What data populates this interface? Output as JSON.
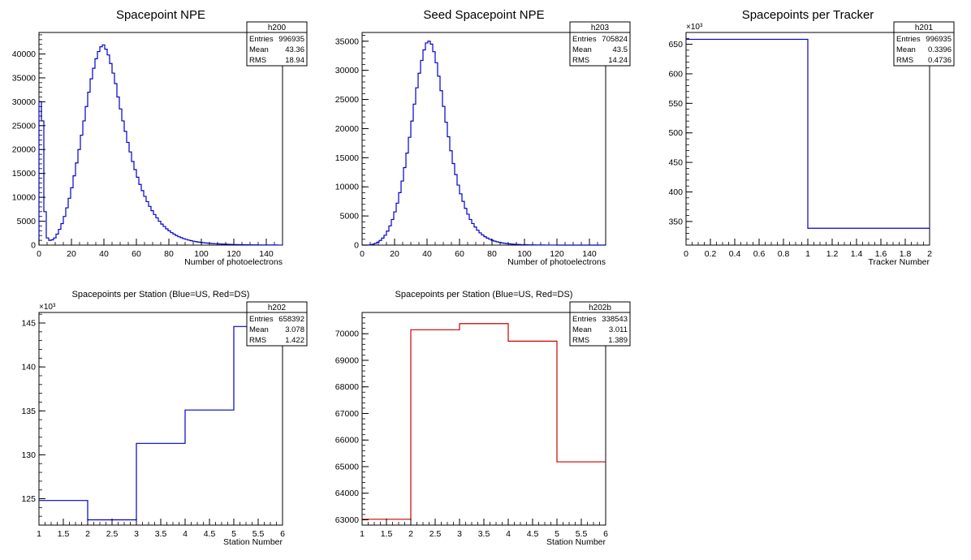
{
  "chart_data": [
    {
      "id": "h200",
      "type": "histogram",
      "title": "Spacepoint NPE",
      "xlabel": "Number of photoelectrons",
      "ylabel": "",
      "xlim": [
        0,
        150
      ],
      "ylim": [
        0,
        44500
      ],
      "xticks": [
        0,
        20,
        40,
        60,
        80,
        100,
        120,
        140
      ],
      "yticks": [
        0,
        5000,
        10000,
        15000,
        20000,
        25000,
        30000,
        35000,
        40000
      ],
      "exponent": "",
      "color": "#0000cc",
      "grid": false,
      "stats": {
        "name": "h200",
        "rows": [
          [
            "Entries",
            "996935"
          ],
          [
            "Mean",
            "43.36"
          ],
          [
            "RMS",
            "18.94"
          ]
        ]
      },
      "bin_width": 1.5,
      "values": [
        30000,
        26000,
        7000,
        1500,
        1000,
        1100,
        1500,
        2300,
        3300,
        4500,
        6000,
        7800,
        9800,
        12000,
        14500,
        17200,
        20000,
        23000,
        26000,
        29000,
        32000,
        34800,
        37000,
        39000,
        40500,
        41500,
        41900,
        41000,
        39800,
        38000,
        36000,
        33800,
        31000,
        28500,
        26000,
        23800,
        21500,
        19500,
        17500,
        15800,
        14200,
        12700,
        11400,
        10200,
        9100,
        8100,
        7200,
        6400,
        5700,
        5000,
        4400,
        3900,
        3400,
        3000,
        2600,
        2300,
        2000,
        1750,
        1550,
        1350,
        1200,
        1050,
        930,
        820,
        720,
        640,
        570,
        510,
        450,
        400,
        360,
        320,
        290,
        260,
        230,
        210,
        190,
        170,
        150,
        130,
        115,
        100,
        90,
        80,
        70,
        60,
        55,
        50,
        45,
        40,
        36,
        32,
        28,
        25,
        22,
        20,
        18,
        16,
        14,
        12
      ]
    },
    {
      "id": "h203",
      "type": "histogram",
      "title": "Seed Spacepoint NPE",
      "xlabel": "Number of photoelectrons",
      "ylabel": "",
      "xlim": [
        0,
        150
      ],
      "ylim": [
        0,
        36500
      ],
      "xticks": [
        0,
        20,
        40,
        60,
        80,
        100,
        120,
        140
      ],
      "yticks": [
        0,
        5000,
        10000,
        15000,
        20000,
        25000,
        30000,
        35000
      ],
      "exponent": "",
      "color": "#0000cc",
      "grid": false,
      "stats": {
        "name": "h203",
        "rows": [
          [
            "Entries",
            "705824"
          ],
          [
            "Mean",
            "43.5"
          ],
          [
            "RMS",
            "14.24"
          ]
        ]
      },
      "bin_width": 1.5,
      "values": [
        0,
        0,
        10,
        50,
        150,
        300,
        500,
        800,
        1200,
        1700,
        2400,
        3300,
        4400,
        5700,
        7200,
        9000,
        11000,
        13300,
        15800,
        18500,
        21300,
        24200,
        27000,
        29500,
        31700,
        33500,
        34700,
        35000,
        34500,
        33200,
        31300,
        29000,
        26500,
        23800,
        21100,
        18600,
        16200,
        14000,
        12100,
        10300,
        8800,
        7500,
        6300,
        5300,
        4400,
        3700,
        3100,
        2550,
        2100,
        1750,
        1450,
        1200,
        1000,
        820,
        680,
        560,
        460,
        380,
        310,
        260,
        210,
        175,
        145,
        120,
        100,
        80,
        65,
        55,
        45,
        37,
        30,
        25,
        20,
        16,
        13,
        11,
        9,
        7,
        6,
        5,
        4,
        3,
        3,
        2,
        2,
        1,
        1,
        1,
        1,
        0,
        0,
        0,
        0,
        0,
        0,
        0,
        0,
        0,
        0,
        0
      ]
    },
    {
      "id": "h201",
      "type": "histogram",
      "title": "Spacepoints per Tracker",
      "xlabel": "Tracker Number",
      "ylabel": "",
      "xlim": [
        0,
        2
      ],
      "ylim": [
        310,
        670
      ],
      "xticks": [
        0,
        0.2,
        0.4,
        0.6,
        0.8,
        1,
        1.2,
        1.4,
        1.6,
        1.8,
        2
      ],
      "xtick_labels": [
        "0",
        "0.2",
        "0.4",
        "0.6",
        "0.8",
        "1",
        "1.2",
        "1.4",
        "1.6",
        "1.8",
        "2"
      ],
      "yticks": [
        350,
        400,
        450,
        500,
        550,
        600,
        650
      ],
      "exponent": "×10³",
      "color": "#0000cc",
      "grid": false,
      "stats": {
        "name": "h201",
        "rows": [
          [
            "Entries",
            "996935"
          ],
          [
            "Mean",
            "0.3396"
          ],
          [
            "RMS",
            "0.4736"
          ]
        ]
      },
      "edges": [
        0,
        1,
        2
      ],
      "values": [
        658.392,
        338.543
      ]
    },
    {
      "id": "h202",
      "type": "histogram",
      "title": "Spacepoints per Station (Blue=US, Red=DS)",
      "xlabel": "Station Number",
      "ylabel": "",
      "xlim": [
        1,
        6
      ],
      "ylim": [
        122,
        146.2
      ],
      "xticks": [
        1,
        1.5,
        2,
        2.5,
        3,
        3.5,
        4,
        4.5,
        5,
        5.5,
        6
      ],
      "xtick_labels": [
        "1",
        "1.5",
        "2",
        "2.5",
        "3",
        "3.5",
        "4",
        "4.5",
        "5",
        "5.5",
        "6"
      ],
      "yticks": [
        125,
        130,
        135,
        140,
        145
      ],
      "exponent": "×10³",
      "color": "#0000cc",
      "grid": false,
      "stats": {
        "name": "h202",
        "rows": [
          [
            "Entries",
            "658392"
          ],
          [
            "Mean",
            "3.078"
          ],
          [
            "RMS",
            "1.422"
          ]
        ]
      },
      "edges": [
        1,
        2,
        3,
        4,
        5,
        6
      ],
      "values": [
        124.8,
        122.6,
        131.3,
        135.1,
        144.6
      ]
    },
    {
      "id": "h202b",
      "type": "histogram",
      "title": "Spacepoints per Station (Blue=US, Red=DS)",
      "xlabel": "Station Number",
      "ylabel": "",
      "xlim": [
        1,
        6
      ],
      "ylim": [
        62800,
        70800
      ],
      "xticks": [
        1,
        1.5,
        2,
        2.5,
        3,
        3.5,
        4,
        4.5,
        5,
        5.5,
        6
      ],
      "xtick_labels": [
        "1",
        "1.5",
        "2",
        "2.5",
        "3",
        "3.5",
        "4",
        "4.5",
        "5",
        "5.5",
        "6"
      ],
      "yticks": [
        63000,
        64000,
        65000,
        66000,
        67000,
        68000,
        69000,
        70000
      ],
      "exponent": "",
      "color": "#cc0000",
      "grid": false,
      "stats": {
        "name": "h202b",
        "rows": [
          [
            "Entries",
            "338543"
          ],
          [
            "Mean",
            "3.011"
          ],
          [
            "RMS",
            "1.389"
          ]
        ]
      },
      "edges": [
        1,
        2,
        3,
        4,
        5,
        6
      ],
      "values": [
        63020,
        70150,
        70380,
        69720,
        65180
      ]
    }
  ]
}
